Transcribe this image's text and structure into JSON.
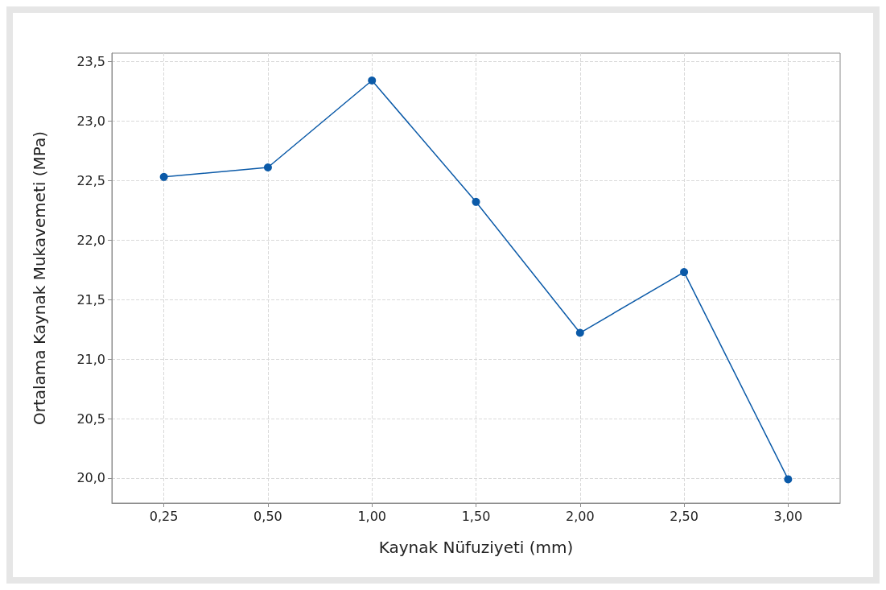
{
  "chart_data": {
    "type": "line",
    "xlabel": "Kaynak Nüfuziyeti (mm)",
    "ylabel": "Ortalama Kaynak Mukavemeti (MPa)",
    "categories": [
      "0,25",
      "0,50",
      "1,00",
      "1,50",
      "2,00",
      "2,50",
      "3,00"
    ],
    "series": [
      {
        "color": "#0b5aa8",
        "values": [
          22.53,
          22.61,
          23.34,
          22.32,
          21.22,
          21.73,
          19.99
        ]
      }
    ],
    "ylim": [
      19.79,
      23.57
    ],
    "yticks": [
      {
        "value": 20,
        "label": "20,0"
      },
      {
        "value": 20.5,
        "label": "20,5"
      },
      {
        "value": 21,
        "label": "21,0"
      },
      {
        "value": 21.5,
        "label": "21,5"
      },
      {
        "value": 22,
        "label": "22,0"
      },
      {
        "value": 22.5,
        "label": "22,5"
      },
      {
        "value": 23,
        "label": "23,0"
      },
      {
        "value": 23.5,
        "label": "23,5"
      }
    ],
    "grid": true,
    "marker": "circle",
    "line_style": "solid"
  }
}
